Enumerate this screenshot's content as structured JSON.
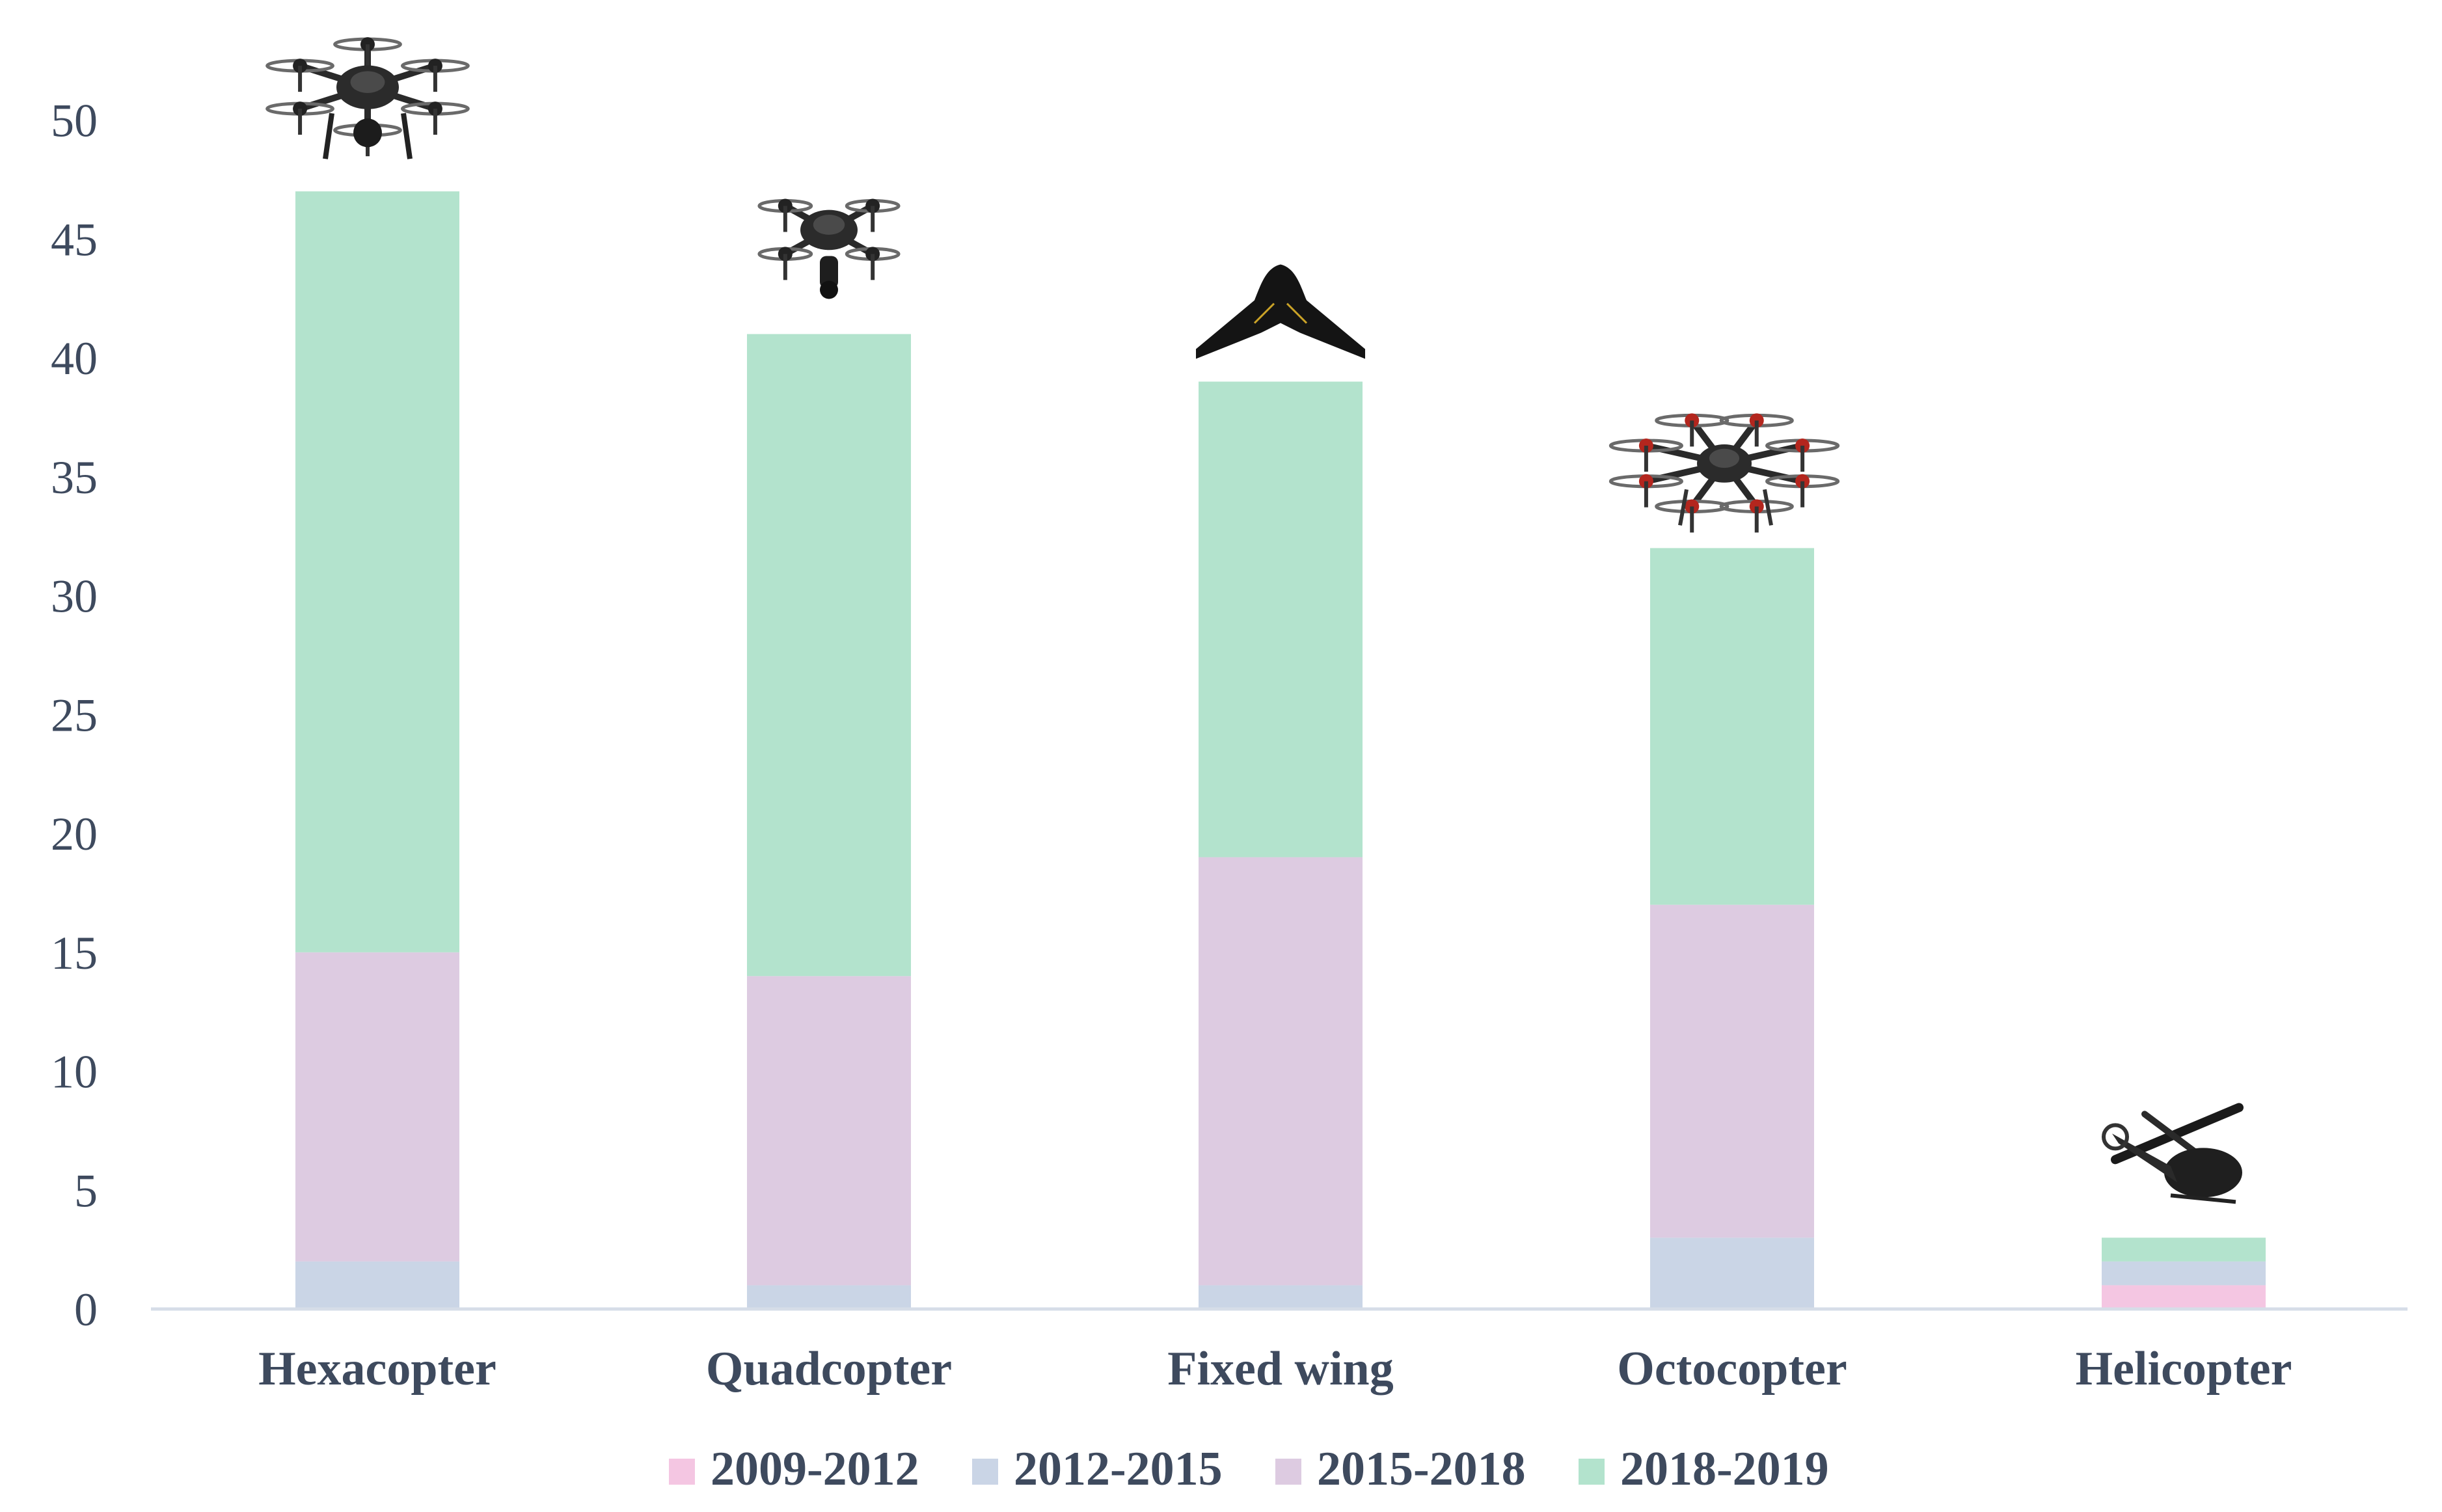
{
  "chart_data": {
    "type": "bar",
    "stacked": true,
    "categories": [
      "Hexacopter",
      "Quadcopter",
      "Fixed wing",
      "Octocopter",
      "Helicopter"
    ],
    "series": [
      {
        "name": "2009-2012",
        "color": "#f4c6e2",
        "values": [
          0,
          0,
          0,
          0,
          1
        ]
      },
      {
        "name": "2012-2015",
        "color": "#cad5e6",
        "values": [
          2,
          1,
          1,
          3,
          1
        ]
      },
      {
        "name": "2015-2018",
        "color": "#ddcbe1",
        "values": [
          13,
          13,
          18,
          14,
          0
        ]
      },
      {
        "name": "2018-2019",
        "color": "#b3e3cd",
        "values": [
          32,
          27,
          20,
          15,
          1
        ]
      }
    ],
    "yticks": [
      0,
      5,
      10,
      15,
      20,
      25,
      30,
      35,
      40,
      45,
      50
    ],
    "ylim": [
      0,
      50
    ],
    "grid": false,
    "legend_position": "bottom",
    "icons": [
      "hexacopter-drone-icon",
      "quadcopter-drone-icon",
      "fixed-wing-drone-icon",
      "octocopter-drone-icon",
      "helicopter-drone-icon"
    ]
  }
}
